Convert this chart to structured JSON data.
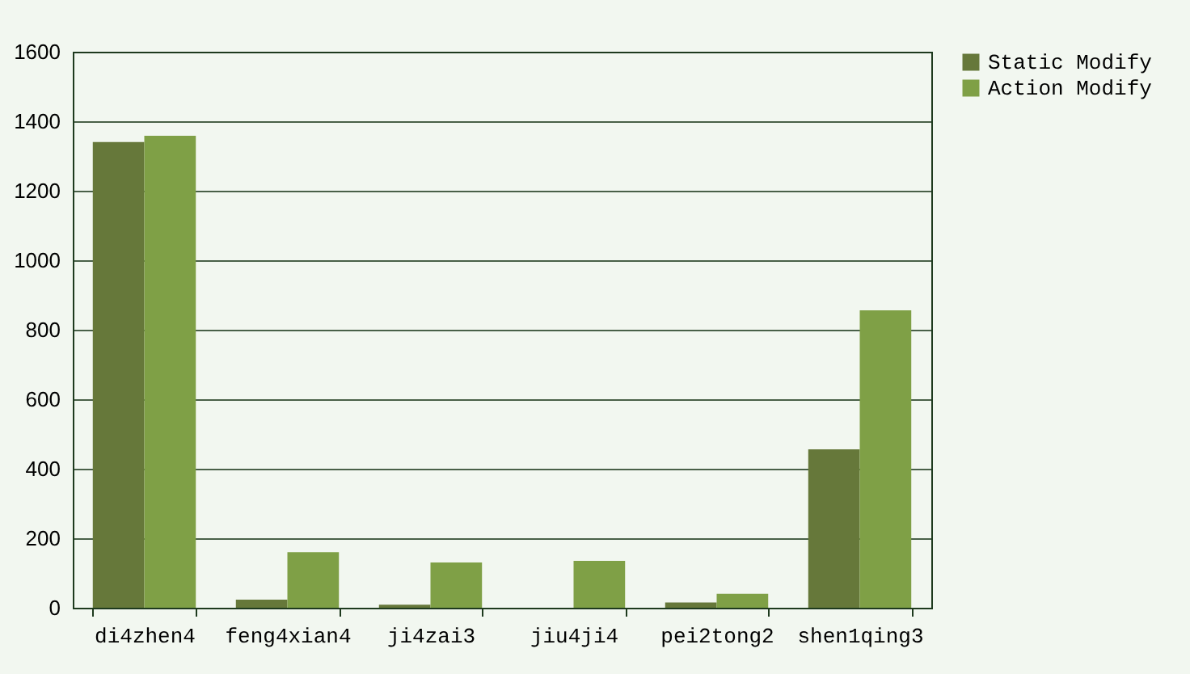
{
  "chart_data": {
    "type": "bar",
    "categories": [
      "di4zhen4",
      "feng4xian4",
      "ji4zai3",
      "jiu4ji4",
      "pei2tong2",
      "shen1qing3"
    ],
    "series": [
      {
        "name": "Static Modify",
        "color": "#66783a",
        "values": [
          1340,
          23,
          9,
          0,
          15,
          456
        ]
      },
      {
        "name": "Action Modify",
        "color": "#7fa046",
        "values": [
          1358,
          160,
          130,
          135,
          40,
          856
        ]
      }
    ],
    "ylim": [
      0,
      1600
    ],
    "yticks": [
      0,
      200,
      400,
      600,
      800,
      1000,
      1200,
      1400,
      1600
    ],
    "grid": "y",
    "legend": "right"
  }
}
